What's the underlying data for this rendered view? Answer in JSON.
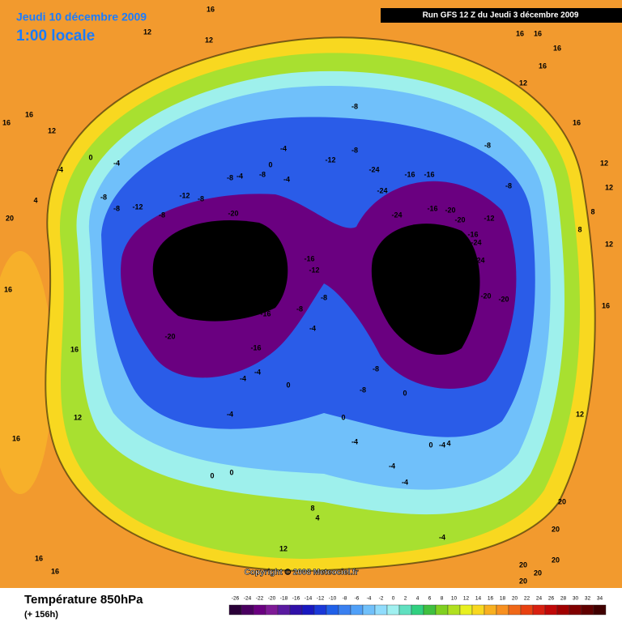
{
  "header": {
    "date": "Jeudi 10 décembre 2009",
    "time": "1:00 locale",
    "run": "Run GFS 12 Z du Jeudi 3 décembre 2009"
  },
  "copyright": "Copyright © 2008 Meteociel.fr",
  "footer": {
    "title": "Température 850hPa",
    "lead": "(+ 156h)"
  },
  "contour_labels": [
    16,
    12,
    12,
    16,
    16,
    16,
    16,
    12,
    16,
    16,
    12,
    16,
    12,
    12,
    8,
    8,
    12,
    16,
    20,
    4,
    0,
    -4,
    -4,
    -8,
    -8,
    -12,
    -12,
    -8,
    -8,
    -8,
    -4,
    -8,
    -4,
    0,
    -4,
    -12,
    -8,
    -8,
    -24,
    -24,
    -16,
    -16,
    -8,
    -8,
    -16,
    -20,
    -20,
    -12,
    -24,
    -20,
    -16,
    -24,
    -24,
    -28,
    -24,
    -20,
    -20,
    -20,
    -20,
    -24,
    -28,
    -16,
    -12,
    -8,
    -8,
    -24,
    -16,
    -20,
    -16,
    -4,
    -4,
    -4,
    -8,
    -8,
    0,
    -4,
    0,
    -4,
    0,
    -4,
    -4,
    -4,
    0,
    4,
    0,
    0,
    8,
    4,
    -4,
    12,
    16,
    16,
    12,
    16,
    16,
    16,
    20,
    20,
    20,
    20,
    20,
    20,
    12
  ],
  "colorbar": {
    "values": [
      -26,
      -24,
      -22,
      -20,
      -18,
      -16,
      -14,
      -12,
      -10,
      -8,
      -6,
      -4,
      -2,
      0,
      2,
      4,
      6,
      8,
      10,
      12,
      14,
      16,
      18,
      20,
      22,
      24,
      26,
      28,
      30,
      32,
      34
    ],
    "colors": [
      "#2a0038",
      "#4a0060",
      "#6a0080",
      "#7e1a96",
      "#5a1aa0",
      "#3010a8",
      "#1818c0",
      "#1a38d8",
      "#2060e8",
      "#3a80f0",
      "#50a0f8",
      "#70c0fa",
      "#90dcfc",
      "#a0f0f0",
      "#60e0c0",
      "#30d080",
      "#40c040",
      "#80d020",
      "#b0e020",
      "#e8f020",
      "#f8d820",
      "#f8b020",
      "#f89020",
      "#f06818",
      "#e84010",
      "#d82010",
      "#c00808",
      "#a00000",
      "#800000",
      "#600000",
      "#400000"
    ]
  }
}
